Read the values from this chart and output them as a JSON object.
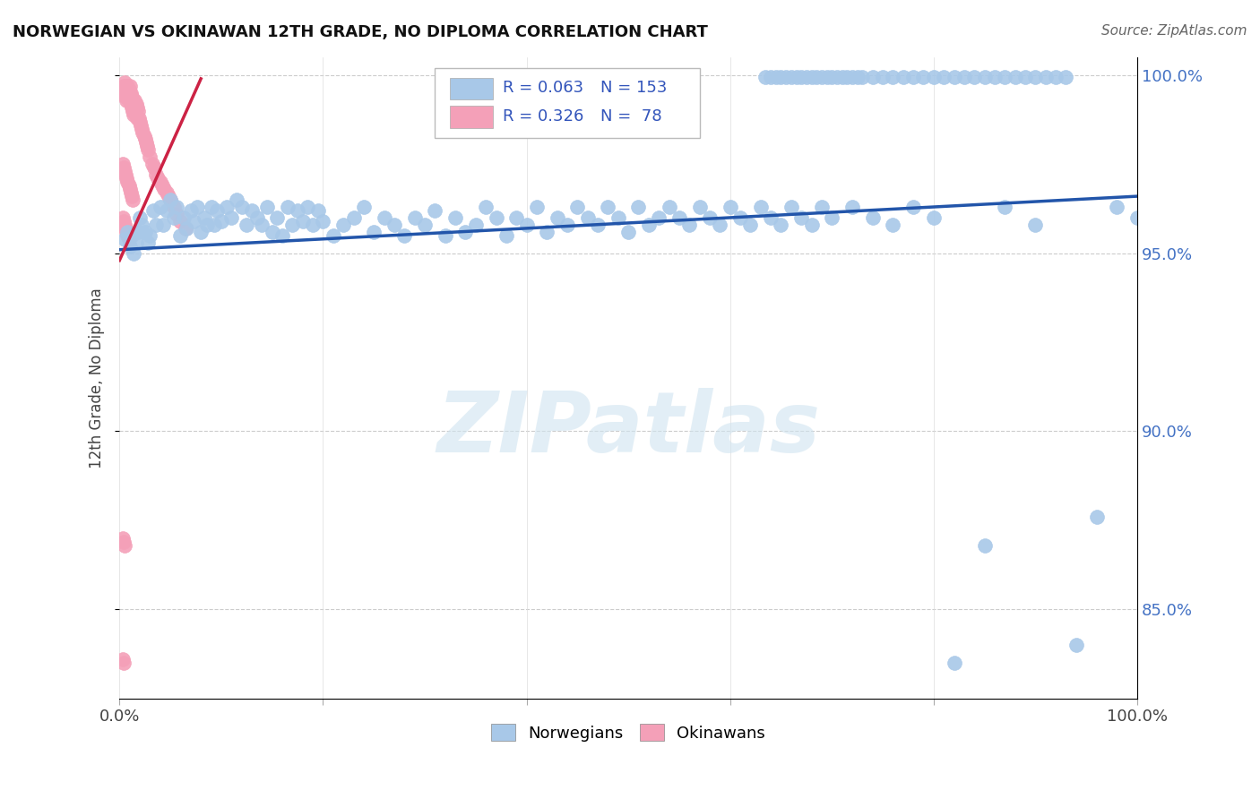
{
  "title": "NORWEGIAN VS OKINAWAN 12TH GRADE, NO DIPLOMA CORRELATION CHART",
  "source_text": "Source: ZipAtlas.com",
  "ylabel": "12th Grade, No Diploma",
  "watermark": "ZIPatlas",
  "norwegian_color": "#a8c8e8",
  "okinawan_color": "#f4a0b8",
  "norwegian_line_color": "#2255aa",
  "okinawan_line_color": "#cc2244",
  "background_color": "#ffffff",
  "xlim": [
    0.0,
    1.0
  ],
  "ylim": [
    0.825,
    1.005
  ],
  "yticks": [
    0.85,
    0.9,
    0.95,
    1.0
  ],
  "ytick_labels": [
    "85.0%",
    "90.0%",
    "95.0%",
    "100.0%"
  ],
  "nor_trend_x0": 0.0,
  "nor_trend_y0": 0.951,
  "nor_trend_x1": 1.0,
  "nor_trend_y1": 0.966,
  "oki_trend_x0": 0.0,
  "oki_trend_y0": 0.948,
  "oki_trend_x1": 0.08,
  "oki_trend_y1": 0.999,
  "norwegian_x": [
    0.005,
    0.008,
    0.01,
    0.012,
    0.014,
    0.016,
    0.018,
    0.02,
    0.022,
    0.025,
    0.028,
    0.03,
    0.033,
    0.036,
    0.04,
    0.043,
    0.046,
    0.05,
    0.053,
    0.056,
    0.06,
    0.063,
    0.066,
    0.07,
    0.073,
    0.076,
    0.08,
    0.083,
    0.086,
    0.09,
    0.093,
    0.096,
    0.1,
    0.105,
    0.11,
    0.115,
    0.12,
    0.125,
    0.13,
    0.135,
    0.14,
    0.145,
    0.15,
    0.155,
    0.16,
    0.165,
    0.17,
    0.175,
    0.18,
    0.185,
    0.19,
    0.195,
    0.2,
    0.21,
    0.22,
    0.23,
    0.24,
    0.25,
    0.26,
    0.27,
    0.28,
    0.29,
    0.3,
    0.31,
    0.32,
    0.33,
    0.34,
    0.35,
    0.36,
    0.37,
    0.38,
    0.39,
    0.4,
    0.41,
    0.42,
    0.43,
    0.44,
    0.45,
    0.46,
    0.47,
    0.48,
    0.49,
    0.5,
    0.51,
    0.52,
    0.53,
    0.54,
    0.55,
    0.56,
    0.57,
    0.58,
    0.59,
    0.6,
    0.61,
    0.62,
    0.63,
    0.64,
    0.65,
    0.66,
    0.67,
    0.68,
    0.69,
    0.7,
    0.72,
    0.74,
    0.76,
    0.78,
    0.8,
    0.82,
    0.85,
    0.87,
    0.9,
    0.94,
    0.96,
    0.98,
    1.0,
    0.635,
    0.64,
    0.645,
    0.65,
    0.655,
    0.66,
    0.665,
    0.67,
    0.675,
    0.68,
    0.685,
    0.69,
    0.695,
    0.7,
    0.705,
    0.71,
    0.715,
    0.72,
    0.725,
    0.73,
    0.74,
    0.75,
    0.76,
    0.77,
    0.78,
    0.79,
    0.8,
    0.81,
    0.82,
    0.83,
    0.84,
    0.85,
    0.86,
    0.87,
    0.88,
    0.89,
    0.9,
    0.91,
    0.92,
    0.93
  ],
  "norwegian_y": [
    0.954,
    0.956,
    0.952,
    0.955,
    0.95,
    0.953,
    0.956,
    0.96,
    0.958,
    0.956,
    0.953,
    0.955,
    0.962,
    0.958,
    0.963,
    0.958,
    0.962,
    0.965,
    0.96,
    0.963,
    0.955,
    0.96,
    0.957,
    0.962,
    0.959,
    0.963,
    0.956,
    0.96,
    0.958,
    0.963,
    0.958,
    0.962,
    0.959,
    0.963,
    0.96,
    0.965,
    0.963,
    0.958,
    0.962,
    0.96,
    0.958,
    0.963,
    0.956,
    0.96,
    0.955,
    0.963,
    0.958,
    0.962,
    0.959,
    0.963,
    0.958,
    0.962,
    0.959,
    0.955,
    0.958,
    0.96,
    0.963,
    0.956,
    0.96,
    0.958,
    0.955,
    0.96,
    0.958,
    0.962,
    0.955,
    0.96,
    0.956,
    0.958,
    0.963,
    0.96,
    0.955,
    0.96,
    0.958,
    0.963,
    0.956,
    0.96,
    0.958,
    0.963,
    0.96,
    0.958,
    0.963,
    0.96,
    0.956,
    0.963,
    0.958,
    0.96,
    0.963,
    0.96,
    0.958,
    0.963,
    0.96,
    0.958,
    0.963,
    0.96,
    0.958,
    0.963,
    0.96,
    0.958,
    0.963,
    0.96,
    0.958,
    0.963,
    0.96,
    0.963,
    0.96,
    0.958,
    0.963,
    0.96,
    0.835,
    0.868,
    0.963,
    0.958,
    0.84,
    0.876,
    0.963,
    0.96,
    0.9995,
    0.9995,
    0.9995,
    0.9995,
    0.9995,
    0.9995,
    0.9995,
    0.9995,
    0.9995,
    0.9995,
    0.9995,
    0.9995,
    0.9995,
    0.9995,
    0.9995,
    0.9995,
    0.9995,
    0.9995,
    0.9995,
    0.9995,
    0.9995,
    0.9995,
    0.9995,
    0.9995,
    0.9995,
    0.9995,
    0.9995,
    0.9995,
    0.9995,
    0.9995,
    0.9995,
    0.9995,
    0.9995,
    0.9995,
    0.9995,
    0.9995,
    0.9995,
    0.9995,
    0.9995,
    0.9995
  ],
  "okinawan_x": [
    0.003,
    0.004,
    0.005,
    0.005,
    0.006,
    0.006,
    0.007,
    0.007,
    0.008,
    0.008,
    0.009,
    0.009,
    0.01,
    0.01,
    0.011,
    0.011,
    0.012,
    0.012,
    0.013,
    0.013,
    0.014,
    0.014,
    0.015,
    0.015,
    0.016,
    0.016,
    0.017,
    0.017,
    0.018,
    0.019,
    0.02,
    0.021,
    0.022,
    0.023,
    0.024,
    0.025,
    0.026,
    0.027,
    0.028,
    0.03,
    0.032,
    0.034,
    0.036,
    0.038,
    0.04,
    0.042,
    0.044,
    0.046,
    0.048,
    0.05,
    0.053,
    0.056,
    0.06,
    0.065,
    0.003,
    0.004,
    0.005,
    0.006,
    0.007,
    0.008,
    0.009,
    0.01,
    0.011,
    0.012,
    0.013,
    0.003,
    0.004,
    0.005,
    0.006,
    0.007,
    0.008,
    0.009,
    0.003,
    0.004,
    0.005,
    0.003,
    0.004
  ],
  "okinawan_y": [
    0.996,
    0.997,
    0.998,
    0.995,
    0.997,
    0.994,
    0.996,
    0.993,
    0.997,
    0.994,
    0.996,
    0.993,
    0.997,
    0.994,
    0.995,
    0.992,
    0.994,
    0.991,
    0.993,
    0.99,
    0.992,
    0.989,
    0.993,
    0.99,
    0.992,
    0.989,
    0.991,
    0.988,
    0.99,
    0.988,
    0.987,
    0.986,
    0.985,
    0.984,
    0.983,
    0.982,
    0.981,
    0.98,
    0.979,
    0.977,
    0.975,
    0.974,
    0.972,
    0.971,
    0.97,
    0.969,
    0.968,
    0.967,
    0.966,
    0.965,
    0.963,
    0.961,
    0.959,
    0.957,
    0.975,
    0.974,
    0.973,
    0.972,
    0.971,
    0.97,
    0.969,
    0.968,
    0.967,
    0.966,
    0.965,
    0.96,
    0.959,
    0.958,
    0.957,
    0.956,
    0.955,
    0.954,
    0.87,
    0.869,
    0.868,
    0.836,
    0.835
  ]
}
